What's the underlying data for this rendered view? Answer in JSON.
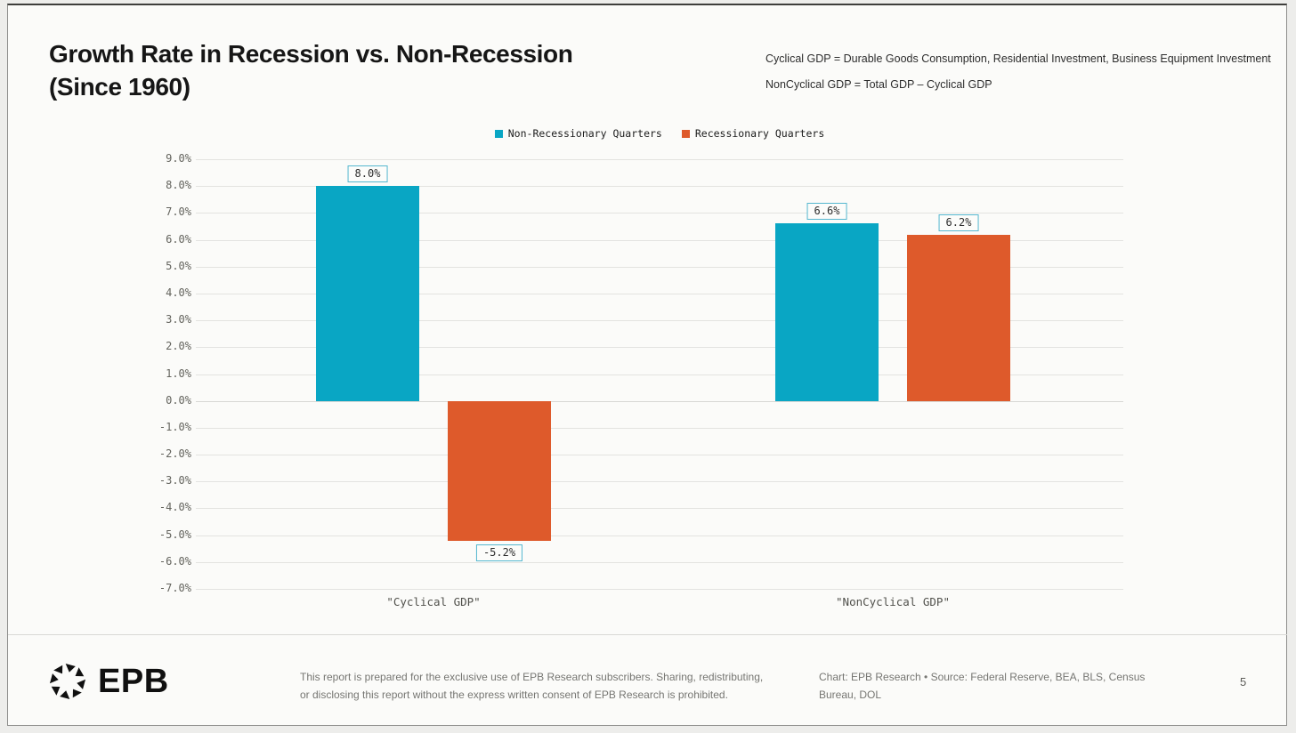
{
  "header": {
    "title_line1": "Growth Rate in Recession vs. Non-Recession",
    "title_line2": "(Since 1960)",
    "note_line1": "Cyclical GDP = Durable Goods Consumption, Residential Investment, Business Equipment Investment",
    "note_line2": "NonCyclical GDP = Total GDP – Cyclical GDP"
  },
  "chart_data": {
    "type": "bar",
    "title": "Growth Rate in Recession vs. Non-Recession (Since 1960)",
    "categories": [
      "\"Cyclical GDP\"",
      "\"NonCyclical GDP\""
    ],
    "series": [
      {
        "name": "Non-Recessionary Quarters",
        "color": "#09a6c4",
        "values": [
          8.0,
          6.6
        ],
        "labels": [
          "8.0%",
          "6.6%"
        ]
      },
      {
        "name": "Recessionary Quarters",
        "color": "#de5a2b",
        "values": [
          -5.2,
          6.2
        ],
        "labels": [
          "-5.2%",
          "6.2%"
        ]
      }
    ],
    "ylim": [
      -7.0,
      9.0
    ],
    "ytick_step": 1.0,
    "ytick_labels": [
      "9.0%",
      "8.0%",
      "7.0%",
      "6.0%",
      "5.0%",
      "4.0%",
      "3.0%",
      "2.0%",
      "1.0%",
      "0.0%",
      "-1.0%",
      "-2.0%",
      "-3.0%",
      "-4.0%",
      "-5.0%",
      "-6.0%",
      "-7.0%"
    ],
    "grid": "horizontal",
    "legend_position": "top-center",
    "value_label_box_border": "#54b7cf",
    "xlabel": "",
    "ylabel": ""
  },
  "footer": {
    "logo_text": "EPB",
    "disclaimer_line1": "This report is prepared for the exclusive use of EPB Research subscribers. Sharing, redistributing,",
    "disclaimer_line2": "or disclosing this report without the express written consent of EPB Research is prohibited.",
    "source_line1": "Chart: EPB Research • Source: Federal Reserve, BEA, BLS, Census",
    "source_line2": "Bureau, DOL",
    "page_number": "5"
  }
}
